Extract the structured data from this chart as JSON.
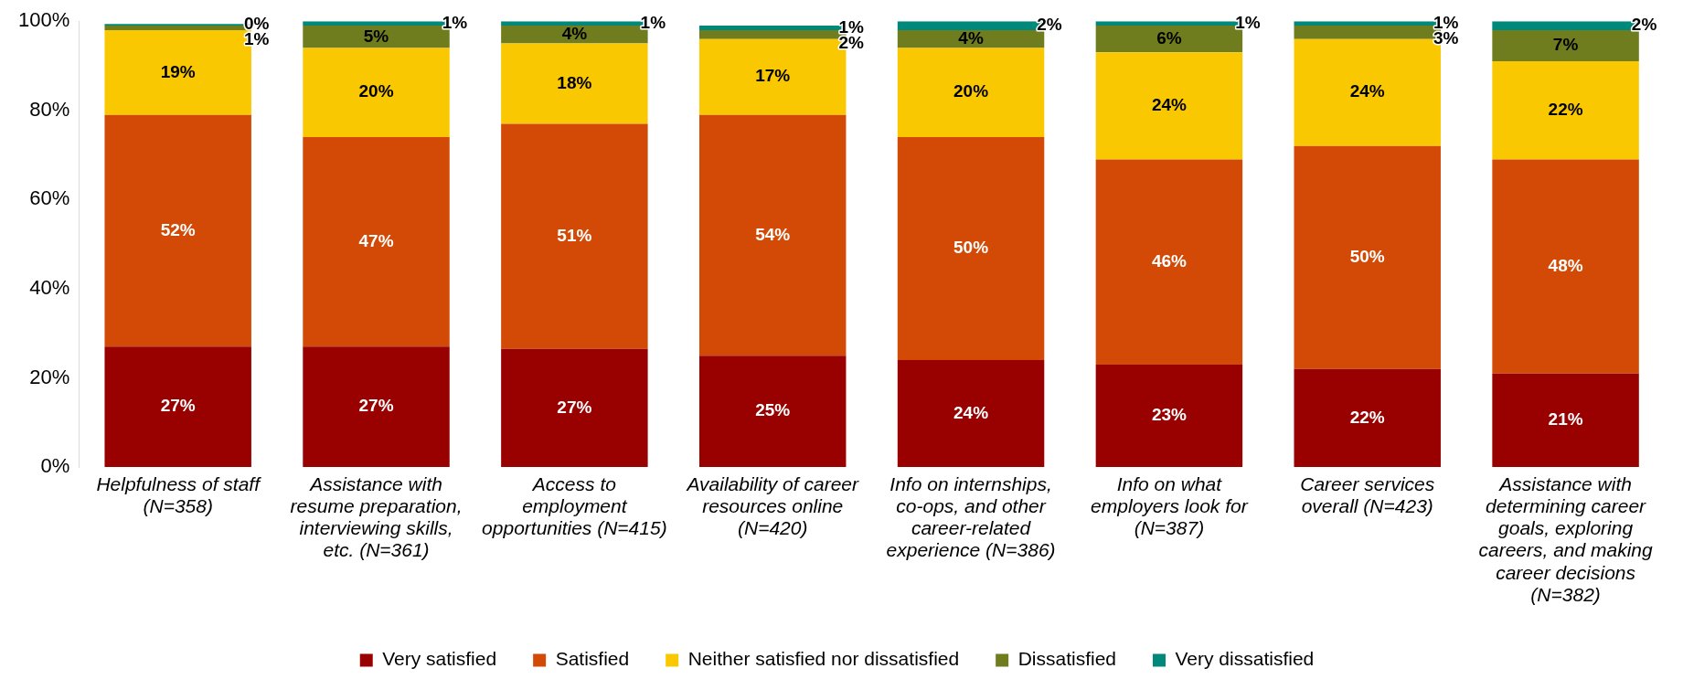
{
  "chart_data": {
    "type": "bar",
    "stacked": true,
    "data_labels": true,
    "legend": "bottom",
    "grid": false,
    "categories": [
      "Helpfulness of staff (N=358)",
      "Assistance with resume preparation, interviewing skills, etc. (N=361)",
      "Access to employment opportunities (N=415)",
      "Availability of career resources online (N=420)",
      "Info on internships, co-ops, and other career-related experience (N=386)",
      "Info on what employers look for (N=387)",
      "Career services overall (N=423)",
      "Assistance with determining career goals, exploring careers, and making career decisions (N=382)"
    ],
    "ylim": [
      0,
      100
    ],
    "yticks": [
      {
        "value": 0,
        "label": "0%"
      },
      {
        "value": 20,
        "label": "20%"
      },
      {
        "value": 40,
        "label": "40%"
      },
      {
        "value": 60,
        "label": "60%"
      },
      {
        "value": 80,
        "label": "80%"
      },
      {
        "value": 100,
        "label": "100%"
      }
    ],
    "series": [
      {
        "name": "Very satisfied",
        "color": "#990000",
        "values": [
          27,
          27,
          26.5,
          25,
          24,
          23,
          22,
          21
        ],
        "value_labels": [
          "27%",
          "27%",
          "27%",
          "25%",
          "24%",
          "23%",
          "22%",
          "21%"
        ]
      },
      {
        "name": "Satisfied",
        "color": "#d24a05",
        "values": [
          52,
          47,
          50.5,
          54,
          50,
          46,
          50,
          48
        ],
        "value_labels": [
          "52%",
          "47%",
          "51%",
          "54%",
          "50%",
          "46%",
          "50%",
          "48%"
        ]
      },
      {
        "name": "Neither satisfied nor dissatisfied",
        "color": "#f9c800",
        "values": [
          19,
          20,
          18,
          17,
          20,
          24,
          24,
          22
        ],
        "value_labels": [
          "19%",
          "20%",
          "18%",
          "17%",
          "20%",
          "24%",
          "24%",
          "22%"
        ]
      },
      {
        "name": "Dissatisfied",
        "color": "#6f7d1e",
        "values": [
          1,
          5,
          4,
          2,
          4,
          6,
          3,
          7
        ],
        "value_labels": [
          "1%",
          "5%",
          "4%",
          "2%",
          "4%",
          "6%",
          "3%",
          "7%"
        ]
      },
      {
        "name": "Very dissatisfied",
        "color": "#00897a",
        "values": [
          0.4,
          1,
          1,
          1,
          2,
          1,
          1,
          2
        ],
        "value_labels": [
          "0%",
          "1%",
          "1%",
          "1%",
          "2%",
          "1%",
          "1%",
          "2%"
        ]
      }
    ]
  }
}
